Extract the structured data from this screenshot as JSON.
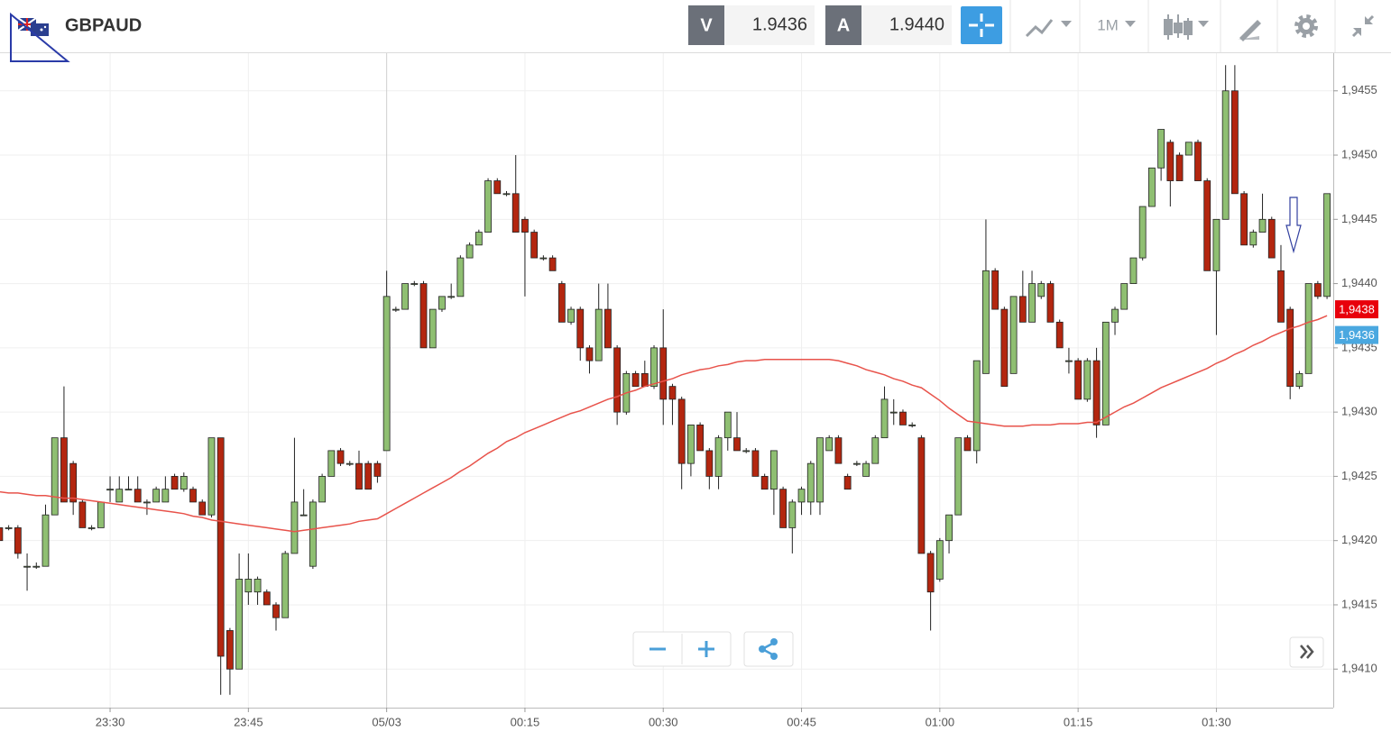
{
  "toolbar": {
    "symbol": "GBPAUD",
    "bid_label": "V",
    "bid": "1.9436",
    "ask_label": "A",
    "ask": "1.9440",
    "timeframe": "1M"
  },
  "chart_data": {
    "type": "candlestick",
    "categories": [
      null,
      null,
      null,
      null,
      null,
      null,
      null,
      null,
      null,
      null,
      null,
      null,
      "23:30",
      null,
      null,
      null,
      null,
      null,
      null,
      null,
      null,
      null,
      null,
      null,
      null,
      null,
      null,
      "23:45",
      null,
      null,
      null,
      null,
      null,
      null,
      null,
      null,
      null,
      null,
      null,
      null,
      null,
      null,
      "05/03",
      null,
      null,
      null,
      null,
      null,
      null,
      null,
      null,
      null,
      null,
      null,
      null,
      null,
      null,
      "00:15",
      null,
      null,
      null,
      null,
      null,
      null,
      null,
      null,
      null,
      null,
      null,
      null,
      null,
      null,
      "00:30",
      null,
      null,
      null,
      null,
      null,
      null,
      null,
      null,
      null,
      null,
      null,
      null,
      null,
      null,
      "00:45",
      null,
      null,
      null,
      null,
      null,
      null,
      null,
      null,
      null,
      null,
      null,
      null,
      null,
      null,
      "01:00",
      null,
      null,
      null,
      null,
      null,
      null,
      null,
      null,
      null,
      null,
      null,
      null,
      null,
      null,
      "01:15",
      null,
      null,
      null,
      null,
      null,
      null,
      null,
      null,
      null,
      null,
      null,
      null,
      null,
      null,
      "01:30",
      null,
      null,
      null,
      null,
      null,
      null,
      null,
      null,
      null,
      null,
      null,
      null
    ],
    "candles": {
      "up_color": "#8fbf72",
      "down_color": "#b3260f",
      "open": [
        1.9421,
        1.9421,
        1.9421,
        1.9418,
        1.9418,
        1.9418,
        1.9422,
        1.9428,
        1.9426,
        1.9423,
        1.9421,
        1.9421,
        1.9424,
        1.9423,
        1.9424,
        1.9424,
        1.9423,
        1.9423,
        1.9423,
        1.9425,
        1.9424,
        1.9424,
        1.9423,
        1.9422,
        1.9428,
        1.9413,
        1.941,
        1.9416,
        1.9416,
        1.9416,
        1.9415,
        1.9414,
        1.9419,
        1.9422,
        1.9418,
        1.9423,
        1.9425,
        1.9427,
        1.9426,
        1.9426,
        1.9426,
        1.9426,
        1.9427,
        1.9438,
        1.9438,
        1.944,
        1.944,
        1.9435,
        1.9438,
        1.9439,
        1.9439,
        1.9442,
        1.9443,
        1.9444,
        1.9448,
        1.9447,
        1.9447,
        1.9445,
        1.9444,
        1.9442,
        1.9442,
        1.944,
        1.9437,
        1.9438,
        1.9435,
        1.9434,
        1.9438,
        1.9435,
        1.943,
        1.9433,
        1.9433,
        1.9432,
        1.9435,
        1.9432,
        1.9431,
        1.9426,
        1.9429,
        1.9427,
        1.9425,
        1.9428,
        1.9428,
        1.9427,
        1.9427,
        1.9425,
        1.9424,
        1.9424,
        1.9421,
        1.9423,
        1.9423,
        1.9423,
        1.9427,
        1.9428,
        1.9425,
        1.9426,
        1.9425,
        1.9426,
        1.9428,
        1.943,
        1.943,
        1.9429,
        1.9428,
        1.9419,
        1.9417,
        1.942,
        1.9422,
        1.9428,
        1.9427,
        1.9433,
        1.9441,
        1.9438,
        1.9433,
        1.9439,
        1.9437,
        1.9439,
        1.944,
        1.9437,
        1.9434,
        1.9434,
        1.9431,
        1.9434,
        1.9429,
        1.9437,
        1.9438,
        1.944,
        1.9442,
        1.9446,
        1.9449,
        1.9451,
        1.945,
        1.945,
        1.9451,
        1.9448,
        1.9441,
        1.9445,
        1.9455,
        1.9447,
        1.9443,
        1.9444,
        1.9445,
        1.9441,
        1.9438,
        1.9432,
        1.9433,
        1.944,
        1.9439
      ],
      "high": [
        1.94213,
        1.94212,
        1.94212,
        1.9419,
        1.94183,
        1.94228,
        1.9428,
        1.9432,
        1.94262,
        1.94232,
        1.94212,
        1.9423,
        1.9425,
        1.9425,
        1.9425,
        1.9425,
        1.94232,
        1.94242,
        1.9425,
        1.94252,
        1.94253,
        1.94242,
        1.94232,
        1.9428,
        1.9428,
        1.94132,
        1.9419,
        1.9419,
        1.94172,
        1.94162,
        1.94152,
        1.94192,
        1.9428,
        1.9424,
        1.94232,
        1.94252,
        1.9427,
        1.94272,
        1.94262,
        1.9427,
        1.94262,
        1.94262,
        1.9441,
        1.94382,
        1.944,
        1.94402,
        1.94402,
        1.9438,
        1.9439,
        1.944,
        1.94422,
        1.94432,
        1.94442,
        1.94482,
        1.94482,
        1.94472,
        1.945,
        1.94452,
        1.94442,
        1.94422,
        1.94422,
        1.94402,
        1.94382,
        1.94382,
        1.94352,
        1.944,
        1.944,
        1.94352,
        1.94332,
        1.94332,
        1.9434,
        1.94352,
        1.9438,
        1.94322,
        1.94312,
        1.9429,
        1.94292,
        1.94272,
        1.94282,
        1.943,
        1.943,
        1.94272,
        1.94272,
        1.94252,
        1.9427,
        1.94242,
        1.94232,
        1.94242,
        1.94262,
        1.9428,
        1.94282,
        1.94282,
        1.94252,
        1.94262,
        1.94262,
        1.94282,
        1.9432,
        1.9431,
        1.94302,
        1.94292,
        1.94282,
        1.94192,
        1.94202,
        1.9422,
        1.9428,
        1.94282,
        1.9434,
        1.9445,
        1.94412,
        1.94382,
        1.9439,
        1.9441,
        1.9441,
        1.94402,
        1.94402,
        1.94372,
        1.9435,
        1.94342,
        1.94342,
        1.9435,
        1.9437,
        1.94382,
        1.944,
        1.9442,
        1.9446,
        1.9449,
        1.9452,
        1.94512,
        1.94502,
        1.9451,
        1.94512,
        1.94482,
        1.9445,
        1.9457,
        1.9457,
        1.94472,
        1.94442,
        1.9447,
        1.94452,
        1.9443,
        1.94382,
        1.94332,
        1.944,
        1.94402,
        1.9447
      ],
      "low": [
        1.942,
        1.94208,
        1.94186,
        1.94161,
        1.94178,
        1.9418,
        1.9422,
        1.9423,
        1.9422,
        1.9421,
        1.94208,
        1.9421,
        1.9423,
        1.9423,
        1.9424,
        1.9423,
        1.9422,
        1.9423,
        1.9423,
        1.9424,
        1.94238,
        1.9423,
        1.9422,
        1.94218,
        1.9408,
        1.9408,
        1.941,
        1.9415,
        1.9415,
        1.9415,
        1.9413,
        1.9414,
        1.9419,
        1.9422,
        1.94178,
        1.9423,
        1.9425,
        1.94258,
        1.94258,
        1.9424,
        1.9424,
        1.94245,
        1.9427,
        1.94378,
        1.9438,
        1.94398,
        1.9435,
        1.9435,
        1.94378,
        1.94388,
        1.9439,
        1.9442,
        1.9443,
        1.9444,
        1.9447,
        1.94468,
        1.9444,
        1.9439,
        1.9442,
        1.94418,
        1.9441,
        1.9437,
        1.94368,
        1.9434,
        1.9433,
        1.9434,
        1.9435,
        1.9429,
        1.94298,
        1.9432,
        1.9432,
        1.94318,
        1.9429,
        1.9429,
        1.9424,
        1.9425,
        1.9427,
        1.9424,
        1.9424,
        1.9427,
        1.9427,
        1.94268,
        1.9425,
        1.9424,
        1.9422,
        1.9421,
        1.9419,
        1.9422,
        1.9422,
        1.9422,
        1.9427,
        1.9426,
        1.9424,
        1.94258,
        1.9425,
        1.9426,
        1.9428,
        1.9429,
        1.9429,
        1.94288,
        1.9419,
        1.9413,
        1.94168,
        1.9419,
        1.9422,
        1.9427,
        1.9426,
        1.9433,
        1.9438,
        1.9432,
        1.9433,
        1.9437,
        1.9437,
        1.94388,
        1.9437,
        1.9435,
        1.9433,
        1.9431,
        1.94308,
        1.9428,
        1.9429,
        1.9436,
        1.9438,
        1.944,
        1.94418,
        1.9446,
        1.9448,
        1.9446,
        1.9448,
        1.945,
        1.9448,
        1.9441,
        1.9436,
        1.9445,
        1.9447,
        1.9443,
        1.94428,
        1.9444,
        1.9442,
        1.9437,
        1.9431,
        1.94318,
        1.9433,
        1.94388,
        1.94388
      ],
      "close": [
        1.942,
        1.9421,
        1.9419,
        1.9418,
        1.9418,
        1.9422,
        1.9428,
        1.9423,
        1.9423,
        1.9421,
        1.9421,
        1.9423,
        1.9424,
        1.9424,
        1.9424,
        1.9423,
        1.9423,
        1.9424,
        1.9424,
        1.9424,
        1.9425,
        1.9423,
        1.9422,
        1.9428,
        1.9411,
        1.941,
        1.9417,
        1.9417,
        1.9417,
        1.9415,
        1.9414,
        1.9419,
        1.9423,
        1.9422,
        1.9423,
        1.9425,
        1.9427,
        1.9426,
        1.9426,
        1.9424,
        1.9424,
        1.9425,
        1.9439,
        1.9438,
        1.944,
        1.944,
        1.9435,
        1.9438,
        1.9439,
        1.9439,
        1.9442,
        1.9443,
        1.9444,
        1.9448,
        1.9447,
        1.9447,
        1.9444,
        1.9444,
        1.9442,
        1.9442,
        1.9441,
        1.9437,
        1.9438,
        1.9435,
        1.9434,
        1.9438,
        1.9435,
        1.943,
        1.9433,
        1.9432,
        1.9432,
        1.9435,
        1.9431,
        1.9431,
        1.9426,
        1.9429,
        1.9427,
        1.9425,
        1.9428,
        1.943,
        1.9427,
        1.9427,
        1.9425,
        1.9424,
        1.9427,
        1.9421,
        1.9423,
        1.9424,
        1.9426,
        1.9428,
        1.9428,
        1.9426,
        1.9424,
        1.9426,
        1.9426,
        1.9428,
        1.9431,
        1.943,
        1.9429,
        1.9429,
        1.9419,
        1.9416,
        1.942,
        1.9422,
        1.9428,
        1.9427,
        1.9434,
        1.9441,
        1.9438,
        1.9432,
        1.9439,
        1.9437,
        1.944,
        1.944,
        1.9437,
        1.9435,
        1.9434,
        1.9431,
        1.9434,
        1.9429,
        1.9437,
        1.9438,
        1.944,
        1.9442,
        1.9446,
        1.9449,
        1.9452,
        1.9448,
        1.9448,
        1.9451,
        1.9448,
        1.9441,
        1.9445,
        1.9455,
        1.9447,
        1.9443,
        1.9444,
        1.9445,
        1.9442,
        1.9437,
        1.9432,
        1.9433,
        1.944,
        1.9439,
        1.9447
      ]
    },
    "overlay": {
      "type": "line",
      "color": "#e8534b",
      "values": [
        1.94238,
        1.94237,
        1.94237,
        1.94236,
        1.94235,
        1.94235,
        1.94234,
        1.94233,
        1.94233,
        1.94232,
        1.94231,
        1.9423,
        1.94229,
        1.94228,
        1.94227,
        1.94226,
        1.94225,
        1.94224,
        1.94223,
        1.94222,
        1.94221,
        1.94219,
        1.94218,
        1.94216,
        1.94215,
        1.94214,
        1.94213,
        1.94212,
        1.94211,
        1.9421,
        1.94209,
        1.94208,
        1.94207,
        1.94208,
        1.94209,
        1.9421,
        1.94211,
        1.94212,
        1.94213,
        1.94215,
        1.94216,
        1.94217,
        1.94221,
        1.94225,
        1.94229,
        1.94233,
        1.94237,
        1.94241,
        1.94245,
        1.94249,
        1.94254,
        1.94258,
        1.94263,
        1.94268,
        1.94272,
        1.94277,
        1.9428,
        1.94284,
        1.94287,
        1.9429,
        1.94293,
        1.94296,
        1.94299,
        1.94301,
        1.94304,
        1.94307,
        1.9431,
        1.94312,
        1.94315,
        1.94317,
        1.9432,
        1.94322,
        1.94324,
        1.94326,
        1.94329,
        1.94331,
        1.94333,
        1.94334,
        1.94336,
        1.94337,
        1.94339,
        1.9434,
        1.9434,
        1.94341,
        1.94341,
        1.94341,
        1.94341,
        1.94341,
        1.94341,
        1.94341,
        1.94341,
        1.9434,
        1.94338,
        1.94336,
        1.94333,
        1.94331,
        1.94329,
        1.94326,
        1.94324,
        1.94321,
        1.94319,
        1.94314,
        1.94309,
        1.94303,
        1.94298,
        1.94293,
        1.94292,
        1.94291,
        1.9429,
        1.94289,
        1.94289,
        1.94289,
        1.9429,
        1.9429,
        1.9429,
        1.94291,
        1.94291,
        1.94291,
        1.94292,
        1.94292,
        1.94296,
        1.943,
        1.94304,
        1.94307,
        1.94311,
        1.94315,
        1.94319,
        1.94322,
        1.94325,
        1.94328,
        1.94331,
        1.94334,
        1.94338,
        1.94341,
        1.94345,
        1.94348,
        1.94352,
        1.94355,
        1.94359,
        1.94362,
        1.94365,
        1.94367,
        1.9437,
        1.94372,
        1.94375
      ]
    },
    "price_markers": [
      {
        "value": 1.9438,
        "label": "1,9438",
        "color": "#e8000b"
      },
      {
        "value": 1.9436,
        "label": "1,9436",
        "color": "#4aa8e0"
      }
    ],
    "ylim": [
      1.9407,
      1.9458
    ],
    "yticks": [
      {
        "value": 1.941,
        "label": "1,9410"
      },
      {
        "value": 1.9415,
        "label": "1,9415"
      },
      {
        "value": 1.942,
        "label": "1,9420"
      },
      {
        "value": 1.9425,
        "label": "1,9425"
      },
      {
        "value": 1.943,
        "label": "1,9430"
      },
      {
        "value": 1.9435,
        "label": "1,9435"
      },
      {
        "value": 1.944,
        "label": "1,9440"
      },
      {
        "value": 1.9445,
        "label": "1,9445"
      },
      {
        "value": 1.945,
        "label": "1,9450"
      },
      {
        "value": 1.9455,
        "label": "1,9455"
      }
    ],
    "grid": true
  }
}
